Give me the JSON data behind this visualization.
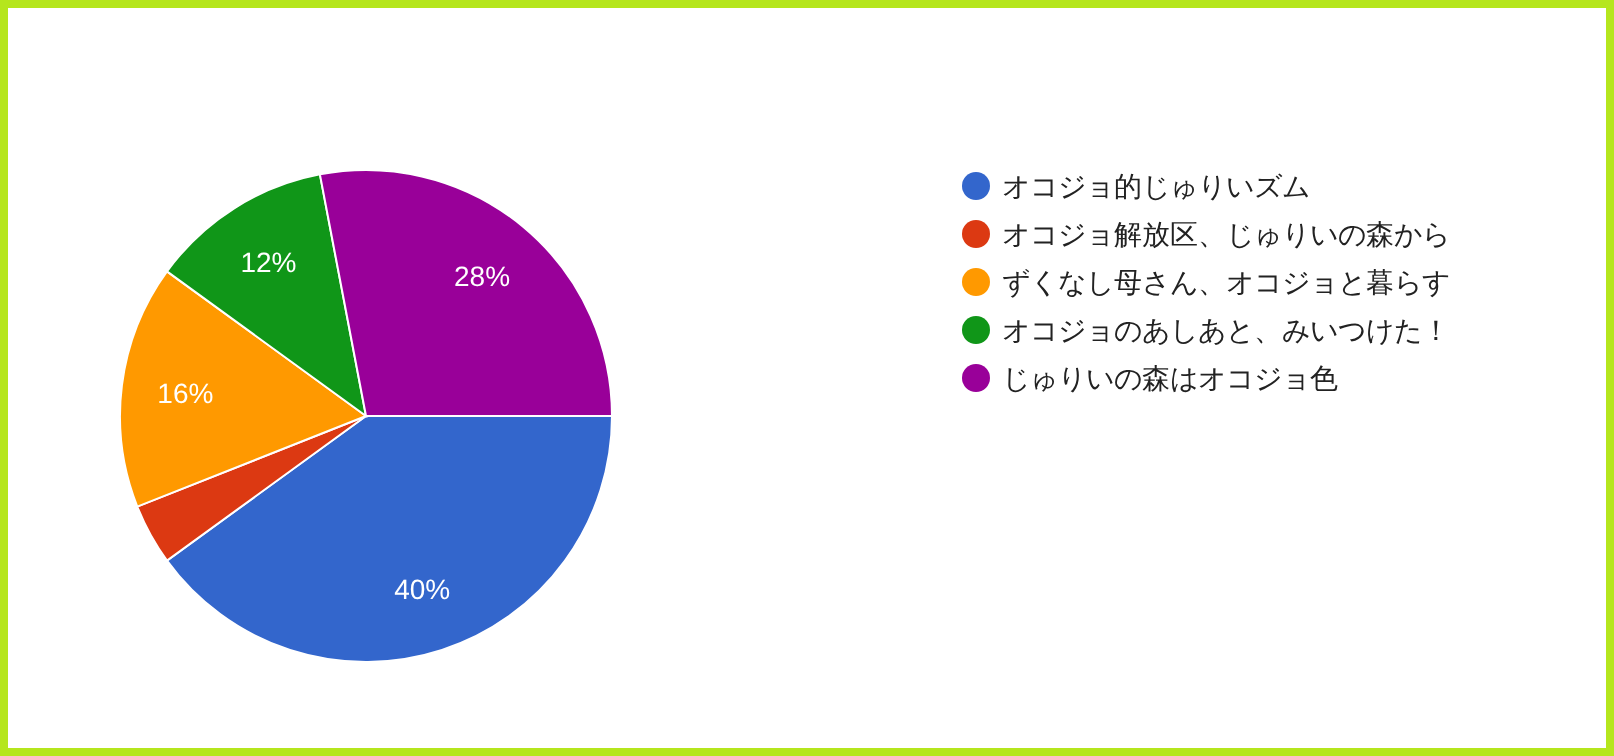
{
  "chart_data": {
    "type": "pie",
    "categories": [
      "オコジョ的じゅりいズム",
      "オコジョ解放区、じゅりいの森から",
      "ずくなし母さん、オコジョと暮らす",
      "オコジョのあしあと、みいつけた！",
      "じゅりいの森はオコジョ色"
    ],
    "values": [
      40,
      4,
      16,
      12,
      28
    ],
    "colors": [
      "#3366cc",
      "#dc3912",
      "#ff9900",
      "#109618",
      "#990099"
    ],
    "value_labels": [
      "40%",
      null,
      "16%",
      "12%",
      "28%"
    ],
    "legend": "right"
  }
}
